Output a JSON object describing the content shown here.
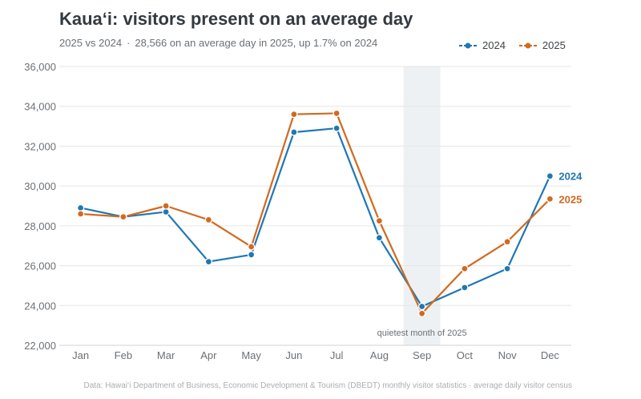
{
  "title": "Kauaʻi: visitors present on an average day",
  "subtitle": {
    "left": "2025 vs 2024",
    "separator": "·",
    "right": "28,566 on an average day in 2025, up 1.7% on 2024"
  },
  "footer": "Data: Hawaiʻi Department of Business, Economic Development & Tourism (DBEDT) monthly visitor statistics · average daily visitor census",
  "colors": {
    "s2024": "#1f77b4",
    "s2025": "#d2691e",
    "grid": "#e6e6e6",
    "band": "#eef1f3"
  },
  "chart_data": {
    "type": "line",
    "title": "Kauaʻi: visitors present on an average day",
    "categories": [
      "Jan",
      "Feb",
      "Mar",
      "Apr",
      "May",
      "Jun",
      "Jul",
      "Aug",
      "Sep",
      "Oct",
      "Nov",
      "Dec"
    ],
    "ylim": [
      22000,
      36000
    ],
    "yticks": [
      22000,
      24000,
      26000,
      28000,
      30000,
      32000,
      34000,
      36000
    ],
    "ytick_labels": [
      "22,000",
      "24,000",
      "26,000",
      "28,000",
      "30,000",
      "32,000",
      "34,000",
      "36,000"
    ],
    "grid": true,
    "legend": "top-right",
    "series": [
      {
        "name": "2024",
        "values": [
          28900,
          28450,
          28700,
          26200,
          26550,
          32700,
          32900,
          27400,
          23950,
          24900,
          25850,
          30500
        ]
      },
      {
        "name": "2025",
        "values": [
          28600,
          28450,
          29000,
          28300,
          26950,
          33600,
          33650,
          28250,
          23600,
          25850,
          27200,
          29350
        ]
      }
    ],
    "annotations": [
      {
        "category": "Sep",
        "text": "quietest month of 2025"
      }
    ]
  }
}
